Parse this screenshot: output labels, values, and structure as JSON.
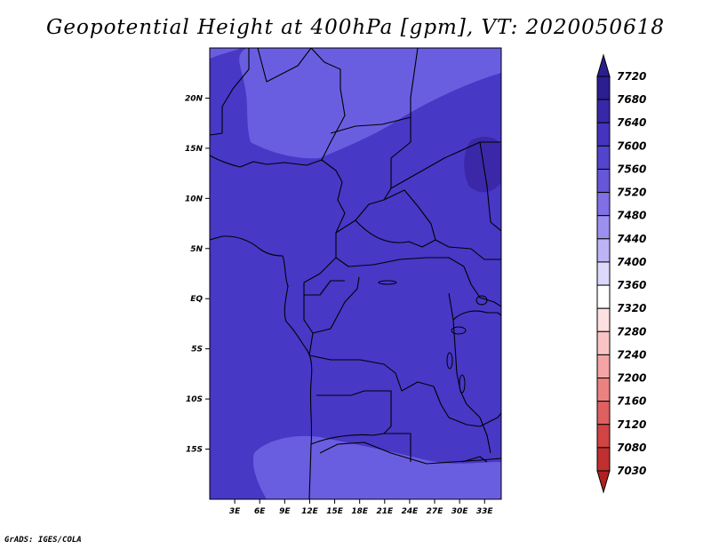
{
  "title": "Geopotential Height at 400hPa [gpm], VT: 2020050618",
  "credit": "GrADS: IGES/COLA",
  "map": {
    "lon_range": [
      0,
      35
    ],
    "lat_range": [
      -20,
      25
    ],
    "x_ticks": [
      "3E",
      "6E",
      "9E",
      "12E",
      "15E",
      "18E",
      "21E",
      "24E",
      "27E",
      "30E",
      "33E"
    ],
    "x_tick_values": [
      3,
      6,
      9,
      12,
      15,
      18,
      21,
      24,
      27,
      30,
      33
    ],
    "y_ticks": [
      "20N",
      "15N",
      "10N",
      "5N",
      "EQ",
      "5S",
      "10S",
      "15S"
    ],
    "y_tick_values": [
      20,
      15,
      10,
      5,
      0,
      -5,
      -10,
      -15
    ],
    "base_fill_color": "#4738c6",
    "light_fill_color": "#6a5ee0",
    "dark_fill_color": "#3b28a8",
    "border_color": "#000000"
  },
  "colorbar": {
    "levels": [
      "7720",
      "7680",
      "7640",
      "7600",
      "7560",
      "7520",
      "7480",
      "7440",
      "7400",
      "7360",
      "7320",
      "7280",
      "7240",
      "7200",
      "7160",
      "7120",
      "7080",
      "7030"
    ],
    "colors": [
      "#2a1e90",
      "#3728a8",
      "#4534c0",
      "#5344cc",
      "#6656d8",
      "#8070e4",
      "#9c90ee",
      "#bdb4f6",
      "#dcd8fb",
      "#ffffff",
      "#fde0e0",
      "#fbc4c4",
      "#f4a4a4",
      "#ea8282",
      "#de6060",
      "#d04444",
      "#c03030",
      "#b02020"
    ]
  }
}
